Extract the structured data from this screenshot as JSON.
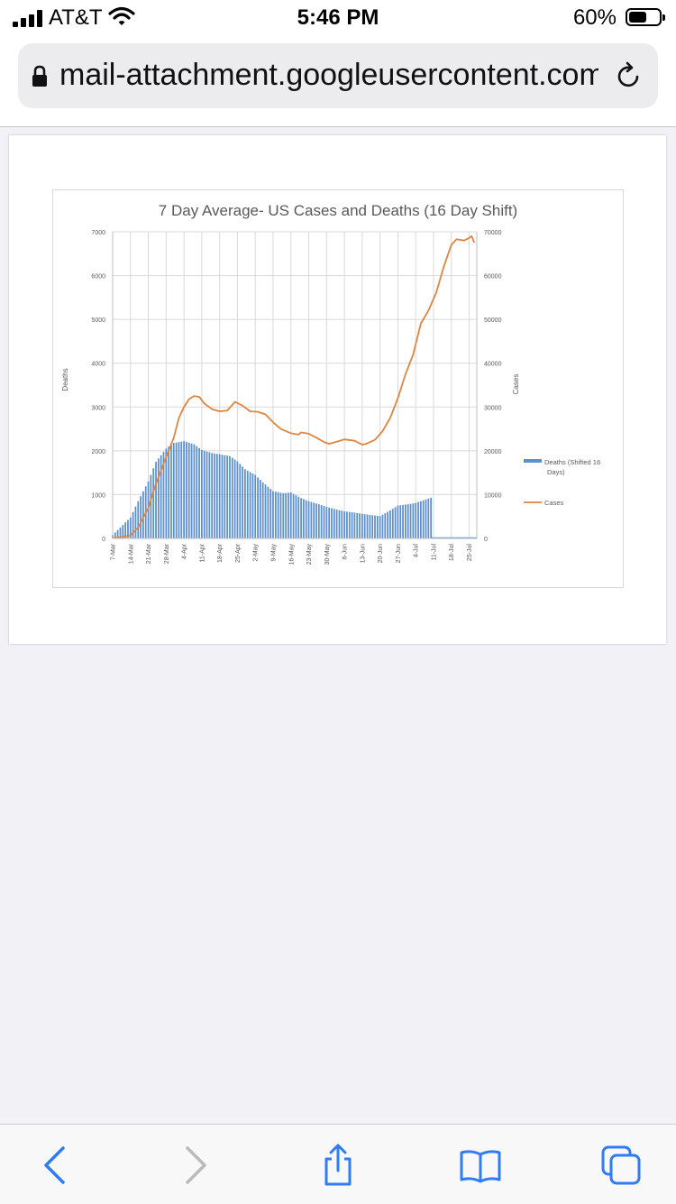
{
  "status_bar": {
    "carrier": "AT&T",
    "time": "5:46 PM",
    "battery_percent": "60%",
    "battery_level": 0.6,
    "signal_bars": 4,
    "icons": [
      "cellular-signal-icon",
      "wifi-icon",
      "battery-icon"
    ]
  },
  "browser": {
    "url": "mail-attachment.googleusercontent.com",
    "icons": [
      "lock-icon",
      "reload-icon"
    ],
    "toolbar": {
      "icons": [
        "back-arrow-icon",
        "forward-arrow-icon",
        "share-icon",
        "bookmarks-icon",
        "tabs-icon"
      ],
      "forward_enabled": false
    }
  },
  "colors": {
    "accent": "#2f7cf6",
    "deaths_bar": "#5b8fcf",
    "cases_line": "#e0853f"
  },
  "chart_data": {
    "type": "bar+line",
    "title": "7 Day Average- US Cases and Deaths (16 Day Shift)",
    "ylabel_left": "Deaths",
    "ylabel_right": "Cases",
    "ylim_left": [
      0,
      7000
    ],
    "ylim_right": [
      0,
      70000
    ],
    "yticks_left": [
      "0",
      "1000",
      "2000",
      "3000",
      "4000",
      "5000",
      "6000",
      "7000"
    ],
    "yticks_right": [
      "0",
      "10000",
      "20000",
      "30000",
      "40000",
      "50000",
      "60000",
      "70000"
    ],
    "x_tick_labels": [
      "7-Mar",
      "14-Mar",
      "21-Mar",
      "28-Mar",
      "4-Apr",
      "11-Apr",
      "18-Apr",
      "25-Apr",
      "2-May",
      "9-May",
      "16-May",
      "23-May",
      "30-May",
      "6-Jun",
      "13-Jun",
      "20-Jun",
      "27-Jun",
      "4-Jul",
      "11-Jul",
      "18-Jul",
      "25-Jul"
    ],
    "x_range": [
      "7-Mar",
      "28-Jul"
    ],
    "grid": true,
    "legend_position": "right",
    "series": [
      {
        "name": "Deaths (Shifted 16 Days)",
        "type": "bar",
        "axis": "left",
        "points": [
          [
            "7-Mar",
            80
          ],
          [
            "10-Mar",
            250
          ],
          [
            "14-Mar",
            480
          ],
          [
            "17-Mar",
            850
          ],
          [
            "21-Mar",
            1300
          ],
          [
            "24-Mar",
            1750
          ],
          [
            "28-Mar",
            2050
          ],
          [
            "31-Mar",
            2180
          ],
          [
            "4-Apr",
            2220
          ],
          [
            "8-Apr",
            2150
          ],
          [
            "11-Apr",
            2020
          ],
          [
            "15-Apr",
            1950
          ],
          [
            "18-Apr",
            1920
          ],
          [
            "22-Apr",
            1880
          ],
          [
            "25-Apr",
            1760
          ],
          [
            "28-Apr",
            1580
          ],
          [
            "2-May",
            1450
          ],
          [
            "5-May",
            1280
          ],
          [
            "9-May",
            1080
          ],
          [
            "13-May",
            1030
          ],
          [
            "16-May",
            1050
          ],
          [
            "20-May",
            920
          ],
          [
            "23-May",
            850
          ],
          [
            "27-May",
            780
          ],
          [
            "30-May",
            720
          ],
          [
            "3-Jun",
            660
          ],
          [
            "6-Jun",
            620
          ],
          [
            "10-Jun",
            590
          ],
          [
            "13-Jun",
            560
          ],
          [
            "17-Jun",
            530
          ],
          [
            "20-Jun",
            510
          ],
          [
            "24-Jun",
            640
          ],
          [
            "27-Jun",
            750
          ],
          [
            "1-Jul",
            780
          ],
          [
            "4-Jul",
            810
          ],
          [
            "8-Jul",
            890
          ],
          [
            "10-Jul",
            930
          ]
        ]
      },
      {
        "name": "Cases",
        "type": "line",
        "axis": "right",
        "points": [
          [
            "7-Mar",
            100
          ],
          [
            "10-Mar",
            250
          ],
          [
            "14-Mar",
            700
          ],
          [
            "17-Mar",
            2500
          ],
          [
            "21-Mar",
            7000
          ],
          [
            "24-Mar",
            12500
          ],
          [
            "28-Mar",
            18500
          ],
          [
            "31-Mar",
            23000
          ],
          [
            "2-Apr",
            27500
          ],
          [
            "4-Apr",
            30000
          ],
          [
            "6-Apr",
            31800
          ],
          [
            "8-Apr",
            32500
          ],
          [
            "10-Apr",
            32300
          ],
          [
            "12-Apr",
            30800
          ],
          [
            "15-Apr",
            29500
          ],
          [
            "18-Apr",
            29000
          ],
          [
            "21-Apr",
            29200
          ],
          [
            "23-Apr",
            30500
          ],
          [
            "24-Apr",
            31200
          ],
          [
            "27-Apr",
            30300
          ],
          [
            "30-Apr",
            29000
          ],
          [
            "3-May",
            28900
          ],
          [
            "6-May",
            28300
          ],
          [
            "9-May",
            26500
          ],
          [
            "12-May",
            25000
          ],
          [
            "16-May",
            24000
          ],
          [
            "19-May",
            23700
          ],
          [
            "20-May",
            24200
          ],
          [
            "23-May",
            23900
          ],
          [
            "26-May",
            23000
          ],
          [
            "29-May",
            22000
          ],
          [
            "31-May",
            21600
          ],
          [
            "3-Jun",
            22100
          ],
          [
            "6-Jun",
            22600
          ],
          [
            "10-Jun",
            22300
          ],
          [
            "13-Jun",
            21400
          ],
          [
            "15-Jun",
            21700
          ],
          [
            "18-Jun",
            22500
          ],
          [
            "21-Jun",
            24500
          ],
          [
            "24-Jun",
            27500
          ],
          [
            "27-Jun",
            32000
          ],
          [
            "30-Jun",
            37500
          ],
          [
            "3-Jul",
            42000
          ],
          [
            "6-Jul",
            49000
          ],
          [
            "9-Jul",
            52000
          ],
          [
            "12-Jul",
            56000
          ],
          [
            "15-Jul",
            62000
          ],
          [
            "18-Jul",
            67000
          ],
          [
            "20-Jul",
            68300
          ],
          [
            "23-Jul",
            68000
          ],
          [
            "25-Jul",
            68600
          ],
          [
            "26-Jul",
            69000
          ],
          [
            "27-Jul",
            67500
          ]
        ]
      }
    ]
  }
}
